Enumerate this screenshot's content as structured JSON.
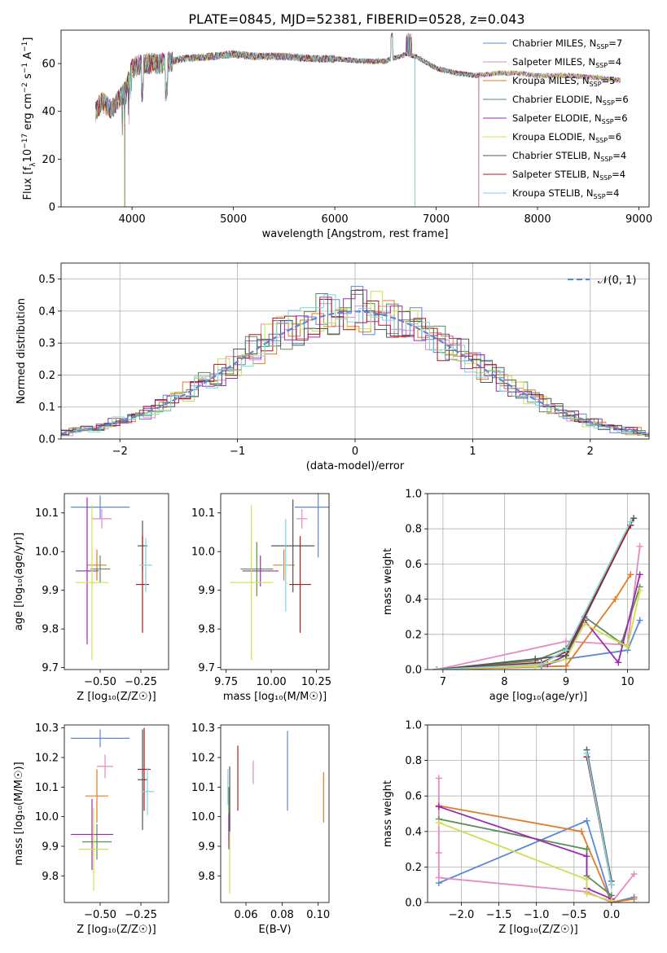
{
  "figure_title": "PLATE=0845, MJD=52381, FIBERID=0528, z=0.043",
  "colors": {
    "chabrier_miles": "#5b88d6",
    "salpeter_miles": "#e48ac0",
    "kroupa_miles": "#e07b26",
    "chabrier_elodie": "#5d8c5a",
    "salpeter_elodie": "#9a2bb0",
    "kroupa_elodie": "#cde04e",
    "chabrier_stelib": "#555555",
    "salpeter_stelib": "#a31d22",
    "kroupa_stelib": "#7fd3e0"
  },
  "chart_data": [
    {
      "id": "spectrum",
      "type": "line",
      "xlabel": "wavelength [Angstrom, rest frame]",
      "ylabel_base": "Flux [f",
      "ylabel_sub": "λ",
      "ylabel_mid": "10",
      "ylabel_sup1": "−17",
      "ylabel_rest": " erg cm",
      "ylabel_sup2": "−2",
      "ylabel_rest2": " s",
      "ylabel_sup3": "−1",
      "ylabel_rest3": " A",
      "ylabel_sup4": "−1",
      "ylabel_end": "]",
      "xlim": [
        3300,
        9100
      ],
      "ylim": [
        0,
        74
      ],
      "xticks": [
        4000,
        5000,
        6000,
        7000,
        8000,
        9000
      ],
      "yticks": [
        0,
        20,
        40,
        60
      ],
      "legend_location": "top-right",
      "legend": [
        {
          "label": "Chabrier MILES, N",
          "sub": "SSP",
          "n": "=7",
          "color_key": "chabrier_miles"
        },
        {
          "label": "Salpeter MILES, N",
          "sub": "SSP",
          "n": "=4",
          "color_key": "salpeter_miles"
        },
        {
          "label": "Kroupa MILES, N",
          "sub": "SSP",
          "n": "=5",
          "color_key": "kroupa_miles"
        },
        {
          "label": "Chabrier ELODIE, N",
          "sub": "SSP",
          "n": "=6",
          "color_key": "chabrier_elodie"
        },
        {
          "label": "Salpeter ELODIE, N",
          "sub": "SSP",
          "n": "=6",
          "color_key": "salpeter_elodie"
        },
        {
          "label": "Kroupa ELODIE, N",
          "sub": "SSP",
          "n": "=6",
          "color_key": "kroupa_elodie"
        },
        {
          "label": "Chabrier STELIB, N",
          "sub": "SSP",
          "n": "=4",
          "color_key": "chabrier_stelib"
        },
        {
          "label": "Salpeter STELIB, N",
          "sub": "SSP",
          "n": "=4",
          "color_key": "salpeter_stelib"
        },
        {
          "label": "Kroupa STELIB, N",
          "sub": "SSP",
          "n": "=4",
          "color_key": "kroupa_stelib"
        }
      ],
      "continuum": [
        [
          3640,
          40
        ],
        [
          3700,
          44
        ],
        [
          3800,
          41
        ],
        [
          3900,
          47
        ],
        [
          3950,
          50
        ],
        [
          4000,
          58
        ],
        [
          4100,
          60
        ],
        [
          4300,
          60
        ],
        [
          4500,
          62
        ],
        [
          4800,
          63
        ],
        [
          5000,
          64
        ],
        [
          5200,
          63
        ],
        [
          5500,
          63
        ],
        [
          5800,
          62
        ],
        [
          6000,
          62
        ],
        [
          6300,
          61
        ],
        [
          6500,
          61
        ],
        [
          6700,
          64
        ],
        [
          6800,
          63
        ],
        [
          7000,
          58
        ],
        [
          7200,
          56
        ],
        [
          7400,
          55
        ],
        [
          7600,
          56
        ],
        [
          7800,
          56
        ],
        [
          8000,
          55
        ],
        [
          8300,
          55
        ],
        [
          8600,
          54
        ],
        [
          8820,
          53
        ]
      ]
    },
    {
      "id": "residuals",
      "type": "histogram",
      "xlabel": "(data-model)/error",
      "ylabel": "Normed distribution",
      "xlim": [
        -2.5,
        2.5
      ],
      "ylim": [
        0,
        0.55
      ],
      "xticks": [
        -2,
        -1,
        0,
        1,
        2
      ],
      "yticks": [
        0.0,
        0.1,
        0.2,
        0.3,
        0.4,
        0.5
      ],
      "legend_location": "top-right",
      "legend_label": "𝒩(0, 1)",
      "bin_width": 0.1,
      "reference_curve": "gaussian mean 0 sigma 1"
    },
    {
      "id": "age_vs_z",
      "type": "errorbar",
      "xlabel": "Z [log₁₀(Z/Z☉)]",
      "ylabel": "age  [log₁₀(age/yr)]",
      "xlim": [
        -0.72,
        -0.08
      ],
      "ylim": [
        9.695,
        10.15
      ],
      "xticks": [
        -0.5,
        -0.25
      ],
      "xtick_labels": [
        "−0.50",
        "−0.25"
      ],
      "yticks": [
        9.7,
        9.8,
        9.9,
        10.0,
        10.1
      ],
      "points": [
        {
          "color_key": "chabrier_miles",
          "x": -0.5,
          "xerr": 0.18,
          "y": 10.115,
          "yerr": 0.03
        },
        {
          "color_key": "salpeter_miles",
          "x": -0.49,
          "xerr": 0.06,
          "y": 10.085,
          "yerr": 0.025
        },
        {
          "color_key": "kroupa_miles",
          "x": -0.52,
          "xerr": 0.06,
          "y": 9.965,
          "yerr": 0.04
        },
        {
          "color_key": "chabrier_elodie",
          "x": -0.5,
          "xerr": 0.06,
          "y": 9.955,
          "yerr": 0.035
        },
        {
          "color_key": "salpeter_elodie",
          "x": -0.58,
          "xerr": 0.07,
          "y": 9.95,
          "yerr": 0.19
        },
        {
          "color_key": "kroupa_elodie",
          "x": -0.55,
          "xerr": 0.1,
          "y": 9.92,
          "yerr": 0.2
        },
        {
          "color_key": "chabrier_stelib",
          "x": -0.24,
          "xerr": 0.03,
          "y": 10.015,
          "yerr": 0.065
        },
        {
          "color_key": "salpeter_stelib",
          "x": -0.24,
          "xerr": 0.04,
          "y": 9.915,
          "yerr": 0.125
        },
        {
          "color_key": "kroupa_stelib",
          "x": -0.22,
          "xerr": 0.04,
          "y": 9.965,
          "yerr": 0.07
        }
      ]
    },
    {
      "id": "age_vs_mass",
      "type": "errorbar",
      "xlabel": "mass [log₁₀(M/M☉)]",
      "ylabel": "",
      "xlim": [
        9.72,
        10.32
      ],
      "ylim": [
        9.695,
        10.15
      ],
      "xticks": [
        9.75,
        10.0,
        10.25
      ],
      "xtick_labels": [
        "9.75",
        "10.00",
        "10.25"
      ],
      "yticks": [
        9.7,
        9.8,
        9.9,
        10.0,
        10.1
      ],
      "points": [
        {
          "color_key": "chabrier_miles",
          "x": 10.26,
          "xerr": 0.13,
          "y": 10.115,
          "yerr": 0.13
        },
        {
          "color_key": "salpeter_miles",
          "x": 10.17,
          "xerr": 0.03,
          "y": 10.085,
          "yerr": 0.025
        },
        {
          "color_key": "kroupa_miles",
          "x": 10.07,
          "xerr": 0.06,
          "y": 9.965,
          "yerr": 0.04
        },
        {
          "color_key": "chabrier_elodie",
          "x": 9.92,
          "xerr": 0.09,
          "y": 9.955,
          "yerr": 0.07
        },
        {
          "color_key": "salpeter_elodie",
          "x": 9.94,
          "xerr": 0.1,
          "y": 9.95,
          "yerr": 0.04
        },
        {
          "color_key": "kroupa_elodie",
          "x": 9.89,
          "xerr": 0.12,
          "y": 9.92,
          "yerr": 0.2
        },
        {
          "color_key": "chabrier_stelib",
          "x": 10.12,
          "xerr": 0.12,
          "y": 10.015,
          "yerr": 0.12
        },
        {
          "color_key": "salpeter_stelib",
          "x": 10.16,
          "xerr": 0.06,
          "y": 9.915,
          "yerr": 0.125
        },
        {
          "color_key": "kroupa_stelib",
          "x": 10.08,
          "xerr": 0.02,
          "y": 9.965,
          "yerr": 0.12
        }
      ]
    },
    {
      "id": "mass_weight_vs_age",
      "type": "line",
      "xlabel": "age  [log₁₀(age/yr)]",
      "ylabel": "mass weight",
      "xlim": [
        6.75,
        10.35
      ],
      "ylim": [
        0,
        1.0
      ],
      "xticks": [
        7,
        8,
        9,
        10
      ],
      "yticks": [
        0.0,
        0.2,
        0.4,
        0.6,
        0.8,
        1.0
      ],
      "series": [
        {
          "color_key": "chabrier_miles",
          "x": [
            6.9,
            8.6,
            9.0,
            10.0,
            10.2
          ],
          "y": [
            0.0,
            0.02,
            0.06,
            0.11,
            0.28
          ]
        },
        {
          "color_key": "salpeter_miles",
          "x": [
            6.9,
            9.0,
            10.0,
            10.2
          ],
          "y": [
            0.0,
            0.16,
            0.14,
            0.7
          ]
        },
        {
          "color_key": "kroupa_miles",
          "x": [
            6.9,
            9.0,
            9.8,
            10.05
          ],
          "y": [
            0.0,
            0.02,
            0.4,
            0.54
          ]
        },
        {
          "color_key": "chabrier_elodie",
          "x": [
            6.9,
            8.5,
            9.0,
            9.3,
            9.9,
            10.2
          ],
          "y": [
            0.0,
            0.05,
            0.12,
            0.3,
            0.15,
            0.47
          ]
        },
        {
          "color_key": "salpeter_elodie",
          "x": [
            6.9,
            8.7,
            9.0,
            9.3,
            9.85,
            10.2
          ],
          "y": [
            0.0,
            0.03,
            0.08,
            0.28,
            0.04,
            0.54
          ]
        },
        {
          "color_key": "kroupa_elodie",
          "x": [
            6.9,
            8.5,
            9.0,
            9.3,
            10.0,
            10.2
          ],
          "y": [
            0.0,
            0.02,
            0.06,
            0.26,
            0.13,
            0.45
          ]
        },
        {
          "color_key": "chabrier_stelib",
          "x": [
            6.9,
            8.5,
            9.0,
            10.1
          ],
          "y": [
            0.0,
            0.06,
            0.08,
            0.86
          ]
        },
        {
          "color_key": "salpeter_stelib",
          "x": [
            6.9,
            8.6,
            9.0,
            10.05
          ],
          "y": [
            0.0,
            0.04,
            0.1,
            0.82
          ]
        },
        {
          "color_key": "kroupa_stelib",
          "x": [
            6.9,
            8.6,
            9.0,
            10.05
          ],
          "y": [
            0.0,
            0.03,
            0.11,
            0.84
          ]
        }
      ]
    },
    {
      "id": "mass_vs_z",
      "type": "errorbar",
      "xlabel": "Z [log₁₀(Z/Z☉)]",
      "ylabel": "mass [log₁₀(M/M☉)]",
      "xlim": [
        -0.72,
        -0.08
      ],
      "ylim": [
        9.71,
        10.31
      ],
      "xticks": [
        -0.5,
        -0.25
      ],
      "xtick_labels": [
        "−0.50",
        "−0.25"
      ],
      "yticks": [
        9.8,
        9.9,
        10.0,
        10.1,
        10.2,
        10.3
      ],
      "points": [
        {
          "color_key": "chabrier_miles",
          "x": -0.5,
          "xerr": 0.18,
          "y": 10.265,
          "yerr": 0.03
        },
        {
          "color_key": "salpeter_miles",
          "x": -0.47,
          "xerr": 0.05,
          "y": 10.17,
          "yerr": 0.04
        },
        {
          "color_key": "kroupa_miles",
          "x": -0.52,
          "xerr": 0.07,
          "y": 10.07,
          "yerr": 0.09
        },
        {
          "color_key": "chabrier_elodie",
          "x": -0.52,
          "xerr": 0.09,
          "y": 9.915,
          "yerr": 0.06
        },
        {
          "color_key": "salpeter_elodie",
          "x": -0.55,
          "xerr": 0.13,
          "y": 9.94,
          "yerr": 0.12
        },
        {
          "color_key": "kroupa_elodie",
          "x": -0.54,
          "xerr": 0.09,
          "y": 9.89,
          "yerr": 0.14
        },
        {
          "color_key": "chabrier_stelib",
          "x": -0.24,
          "xerr": 0.03,
          "y": 10.125,
          "yerr": 0.17
        },
        {
          "color_key": "salpeter_stelib",
          "x": -0.23,
          "xerr": 0.04,
          "y": 10.16,
          "yerr": 0.14
        },
        {
          "color_key": "kroupa_stelib",
          "x": -0.21,
          "xerr": 0.04,
          "y": 10.085,
          "yerr": 0.08
        }
      ]
    },
    {
      "id": "mass_vs_ebv",
      "type": "errorbar",
      "xlabel": "E(B-V)",
      "ylabel": "",
      "xlim": [
        0.046,
        0.106
      ],
      "ylim": [
        9.71,
        10.31
      ],
      "xticks": [
        0.06,
        0.08,
        0.1
      ],
      "xtick_labels": [
        "0.06",
        "0.08",
        "0.10"
      ],
      "yticks": [
        9.8,
        9.9,
        10.0,
        10.1,
        10.2,
        10.3
      ],
      "points": [
        {
          "color_key": "chabrier_miles",
          "x": 0.083,
          "xerr": 0,
          "y": 10.155,
          "yerr": 0.135
        },
        {
          "color_key": "salpeter_miles",
          "x": 0.064,
          "xerr": 0,
          "y": 10.15,
          "yerr": 0.04
        },
        {
          "color_key": "kroupa_miles",
          "x": 0.103,
          "xerr": 0,
          "y": 10.065,
          "yerr": 0.085
        },
        {
          "color_key": "chabrier_elodie",
          "x": 0.0505,
          "xerr": 0,
          "y": 10.01,
          "yerr": 0.09
        },
        {
          "color_key": "salpeter_elodie",
          "x": 0.0505,
          "xerr": 0,
          "y": 9.95,
          "yerr": 0.06
        },
        {
          "color_key": "kroupa_elodie",
          "x": 0.051,
          "xerr": 0,
          "y": 9.88,
          "yerr": 0.14
        },
        {
          "color_key": "chabrier_stelib",
          "x": 0.051,
          "xerr": 0,
          "y": 10.06,
          "yerr": 0.11
        },
        {
          "color_key": "salpeter_stelib",
          "x": 0.0555,
          "xerr": 0,
          "y": 10.13,
          "yerr": 0.11
        },
        {
          "color_key": "kroupa_stelib",
          "x": 0.05,
          "xerr": 0,
          "y": 10.1,
          "yerr": 0.06
        }
      ]
    },
    {
      "id": "mass_weight_vs_z",
      "type": "line",
      "xlabel": "Z [log₁₀(Z/Z☉)]",
      "ylabel": "mass weight",
      "xlim": [
        -2.45,
        0.5
      ],
      "ylim": [
        0,
        1.0
      ],
      "xticks": [
        -2.0,
        -1.5,
        -1.0,
        -0.5,
        0.0
      ],
      "xtick_labels": [
        "−2.0",
        "−1.5",
        "−1.0",
        "−0.5",
        "0.0"
      ],
      "yticks": [
        0.0,
        0.2,
        0.4,
        0.6,
        0.8,
        1.0
      ],
      "series": [
        {
          "color_key": "chabrier_miles",
          "x": [
            -2.3,
            -0.33,
            0.0,
            0.3
          ],
          "y": [
            0.11,
            0.46,
            0.0,
            0.03
          ]
        },
        {
          "color_key": "salpeter_miles",
          "x": [
            -2.3,
            -2.3,
            -2.3,
            -0.33,
            0.0,
            0.3
          ],
          "y": [
            0.7,
            0.28,
            0.14,
            0.06,
            0.0,
            0.16
          ]
        },
        {
          "color_key": "kroupa_miles",
          "x": [
            -2.3,
            -0.4,
            0.0,
            0.3
          ],
          "y": [
            0.545,
            0.4,
            0.0,
            0.02
          ]
        },
        {
          "color_key": "chabrier_elodie",
          "x": [
            -2.3,
            -0.33,
            -0.33,
            0.0
          ],
          "y": [
            0.47,
            0.3,
            0.15,
            0.04
          ]
        },
        {
          "color_key": "salpeter_elodie",
          "x": [
            -2.3,
            -0.33,
            -0.33,
            0.0
          ],
          "y": [
            0.54,
            0.26,
            0.08,
            0.02
          ]
        },
        {
          "color_key": "kroupa_elodie",
          "x": [
            -2.3,
            -0.33,
            -0.33,
            0.0
          ],
          "y": [
            0.45,
            0.13,
            0.05,
            0.01
          ]
        },
        {
          "color_key": "chabrier_stelib",
          "x": [
            -0.33,
            0.0
          ],
          "y": [
            0.86,
            0.12
          ]
        },
        {
          "color_key": "salpeter_stelib",
          "x": [
            -0.33,
            0.0
          ],
          "y": [
            0.82,
            0.1
          ]
        },
        {
          "color_key": "kroupa_stelib",
          "x": [
            -0.33,
            0.0
          ],
          "y": [
            0.84,
            0.1
          ]
        }
      ]
    }
  ]
}
